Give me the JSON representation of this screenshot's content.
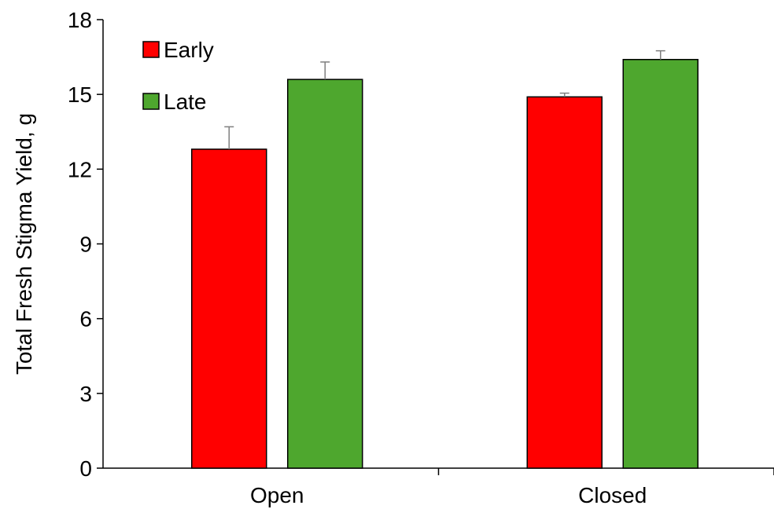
{
  "chart_data": {
    "type": "bar",
    "categories": [
      "Open",
      "Closed"
    ],
    "series": [
      {
        "name": "Early",
        "color": "#ff0000",
        "values": [
          12.8,
          14.9
        ],
        "errors": [
          0.9,
          0.15
        ]
      },
      {
        "name": "Late",
        "color": "#4ea72e",
        "values": [
          15.6,
          16.4
        ],
        "errors": [
          0.7,
          0.35
        ]
      }
    ],
    "title": "",
    "xlabel": "",
    "ylabel": "Total Fresh Stigma Yield, g",
    "ylim": [
      0,
      18
    ],
    "yticks": [
      "0",
      "3",
      "6",
      "9",
      "12",
      "15",
      "18"
    ],
    "grid": false,
    "legend_position": "top-left"
  }
}
